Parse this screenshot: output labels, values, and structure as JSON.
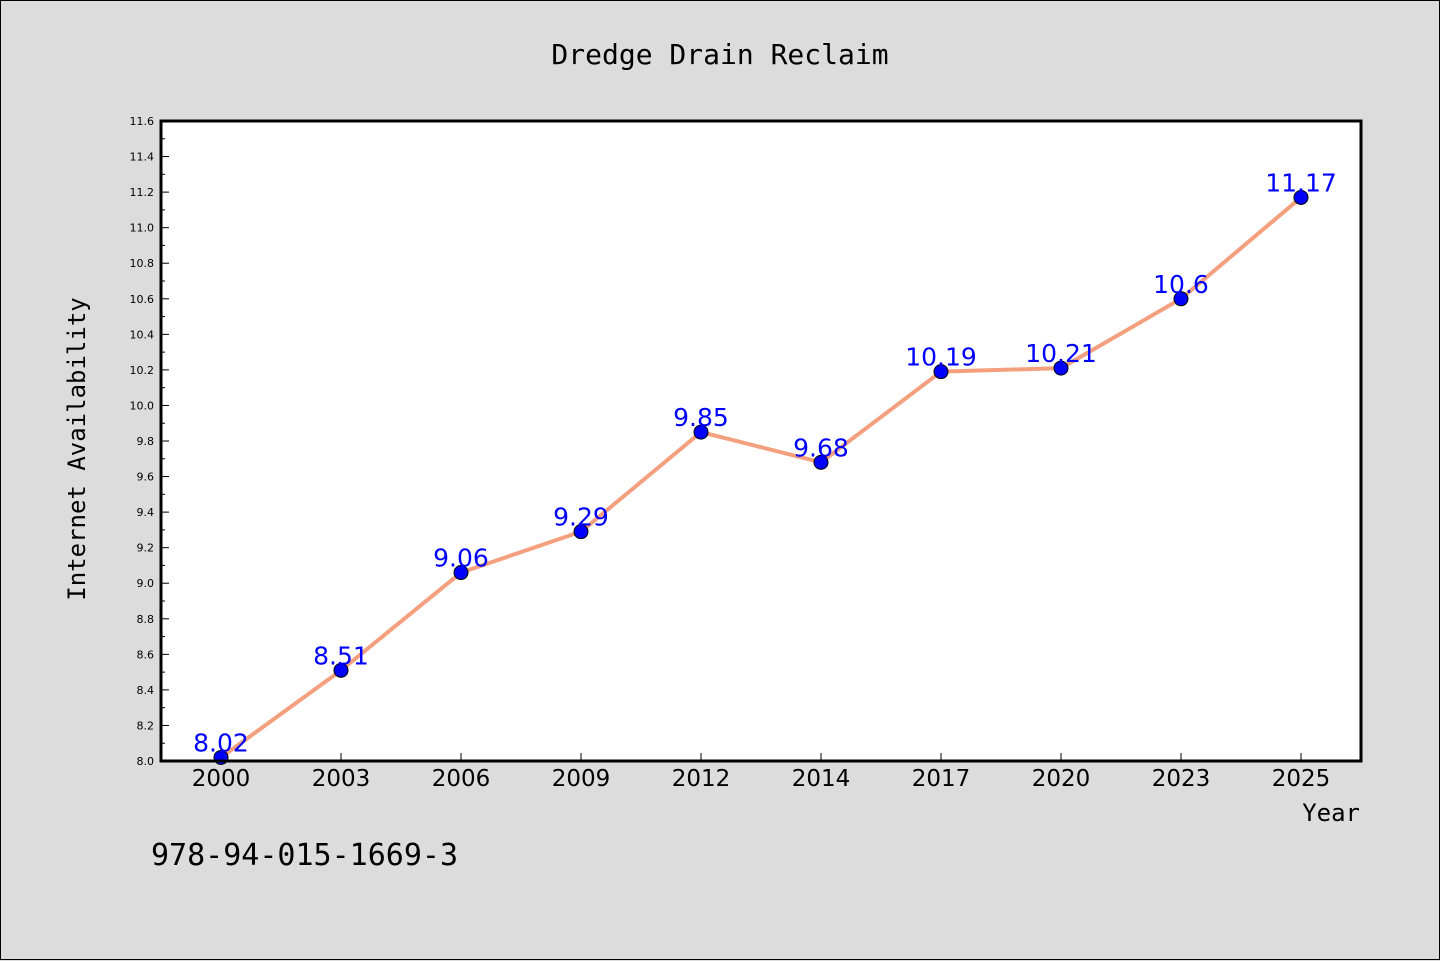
{
  "chart_data": {
    "type": "line",
    "title": "Dredge Drain Reclaim",
    "xlabel": "Year",
    "ylabel": "Internet Availability",
    "categories": [
      "2000",
      "2003",
      "2006",
      "2009",
      "2012",
      "2014",
      "2017",
      "2020",
      "2023",
      "2025"
    ],
    "series": [
      {
        "values": [
          8.02,
          8.51,
          9.06,
          9.29,
          9.85,
          9.68,
          10.19,
          10.21,
          10.6,
          11.17
        ],
        "data_labels": [
          "8.02",
          "8.51",
          "9.06",
          "9.29",
          "9.85",
          "9.68",
          "10.19",
          "10.21",
          "10.6",
          "11.17"
        ],
        "line_color": "#f4a07e",
        "marker_color": "#0000ff"
      }
    ],
    "ylim": [
      8.0,
      11.6
    ],
    "yticks": [
      "8.0",
      "8.2",
      "8.4",
      "8.6",
      "8.8",
      "9.0",
      "9.2",
      "9.4",
      "9.6",
      "9.8",
      "10.0",
      "10.2",
      "10.4",
      "10.6",
      "10.8",
      "11.0",
      "11.2",
      "11.4",
      "11.6"
    ],
    "grid": false,
    "legend": "none",
    "background_color": "#dcdcdc",
    "plot_background_color": "#ffffff",
    "label_color": "#0000ff"
  },
  "footnote": "978-94-015-1669-3"
}
